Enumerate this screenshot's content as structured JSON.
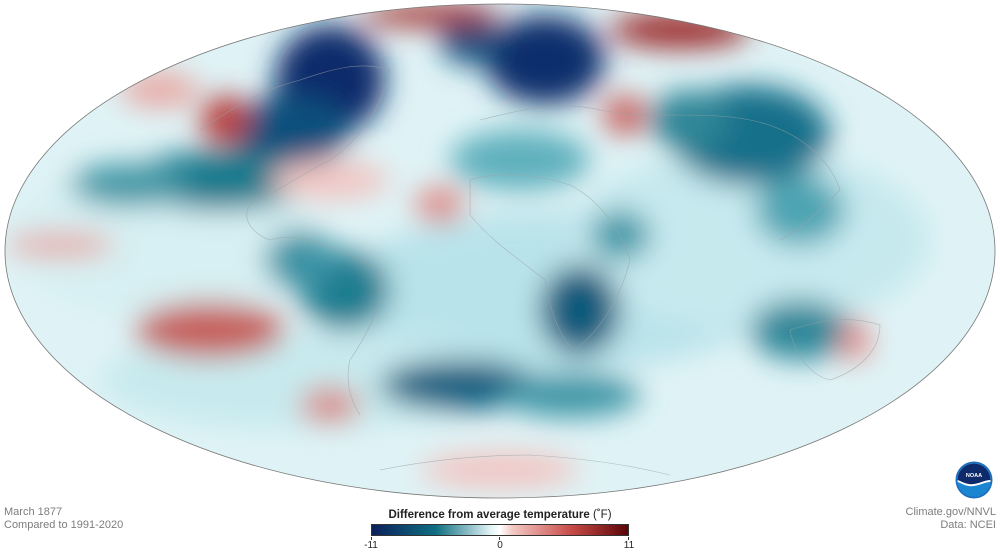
{
  "map": {
    "projection": "Mollweide",
    "subject": "global surface temperature anomaly"
  },
  "footer": {
    "date": "March 1877",
    "baseline": "Compared to 1991-2020",
    "credit": "Climate.gov/NNVL",
    "source": "Data: NCEI"
  },
  "legend": {
    "title": "Difference from average temperature",
    "unit": "(˚F)",
    "min_label": "-11",
    "mid_label": "0",
    "max_label": "11",
    "min": -11,
    "max": 11,
    "colors": [
      "#0b1f5c",
      "#0f6f82",
      "#e9f7f9",
      "#ffffff",
      "#f3c8c4",
      "#c74a47",
      "#5a0508"
    ]
  },
  "logo": {
    "text": "NOAA",
    "icon": "noaa-logo-icon"
  }
}
